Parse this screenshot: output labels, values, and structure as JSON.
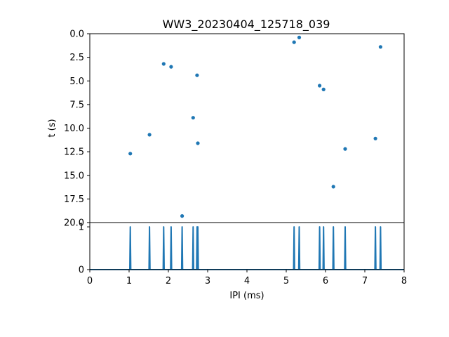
{
  "chart_data": [
    {
      "type": "scatter",
      "title": "WW3_20230404_125718_039",
      "ylabel": "t (s)",
      "xlim": [
        0,
        8
      ],
      "ylim": [
        20,
        0
      ],
      "y_inverted": true,
      "yticks": [
        "0.0",
        "2.5",
        "5.0",
        "7.5",
        "10.0",
        "12.5",
        "15.0",
        "17.5",
        "20.0"
      ],
      "ytick_values": [
        0,
        2.5,
        5,
        7.5,
        10,
        12.5,
        15,
        17.5,
        20
      ],
      "color": "#1f77b4",
      "points": [
        {
          "x": 1.03,
          "y": 12.7
        },
        {
          "x": 1.52,
          "y": 10.7
        },
        {
          "x": 1.88,
          "y": 3.2
        },
        {
          "x": 2.07,
          "y": 3.5
        },
        {
          "x": 2.35,
          "y": 19.3
        },
        {
          "x": 2.63,
          "y": 8.9
        },
        {
          "x": 2.73,
          "y": 4.4
        },
        {
          "x": 2.75,
          "y": 11.6
        },
        {
          "x": 5.2,
          "y": 0.9
        },
        {
          "x": 5.33,
          "y": 0.4
        },
        {
          "x": 5.85,
          "y": 5.5
        },
        {
          "x": 5.95,
          "y": 5.9
        },
        {
          "x": 6.2,
          "y": 16.2
        },
        {
          "x": 6.5,
          "y": 12.2
        },
        {
          "x": 7.27,
          "y": 11.1
        },
        {
          "x": 7.4,
          "y": 1.4
        }
      ]
    },
    {
      "type": "line",
      "xlabel": "IPI (ms)",
      "xlim": [
        0,
        8
      ],
      "ylim": [
        0,
        1.1
      ],
      "xticks": [
        "0",
        "1",
        "2",
        "3",
        "4",
        "5",
        "6",
        "7",
        "8"
      ],
      "xtick_values": [
        0,
        1,
        2,
        3,
        4,
        5,
        6,
        7,
        8
      ],
      "yticks": [
        "0",
        "1"
      ],
      "ytick_values": [
        0,
        1
      ],
      "color": "#1f77b4",
      "spikes_x": [
        1.03,
        1.52,
        1.88,
        2.07,
        2.35,
        2.63,
        2.73,
        2.75,
        5.2,
        5.33,
        5.85,
        5.95,
        6.2,
        6.5,
        7.27,
        7.4
      ],
      "spike_height": 1
    }
  ]
}
